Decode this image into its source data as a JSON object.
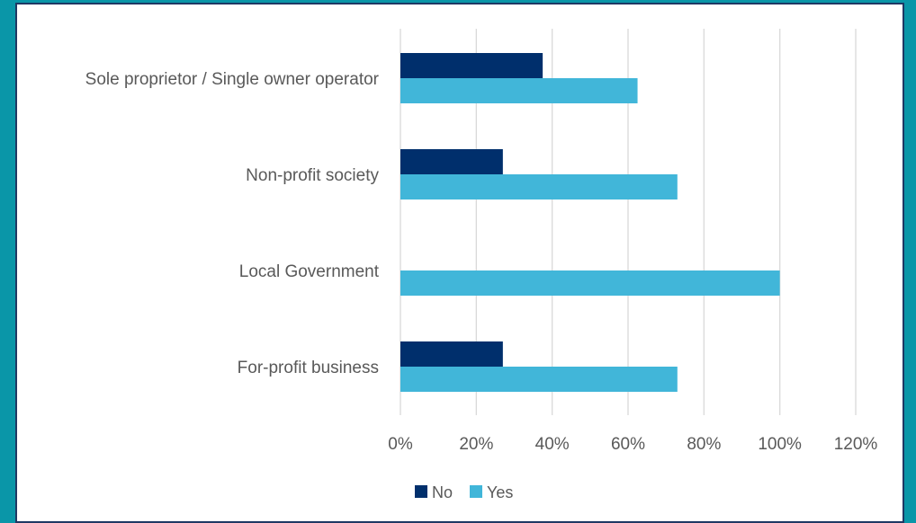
{
  "chart_data": {
    "type": "bar",
    "orientation": "horizontal",
    "categories": [
      "Sole proprietor / Single owner operator",
      "Non-profit society",
      "Local Government",
      "For-profit business"
    ],
    "series": [
      {
        "name": "No",
        "color": "#002f6c",
        "values": [
          0.375,
          0.27,
          0.0,
          0.27
        ]
      },
      {
        "name": "Yes",
        "color": "#41b6d9",
        "values": [
          0.625,
          0.73,
          1.0,
          0.73
        ]
      }
    ],
    "xlim": [
      0,
      1.2
    ],
    "xticks": [
      0,
      0.2,
      0.4,
      0.6,
      0.8,
      1.0,
      1.2
    ],
    "tick_labels": [
      "0%",
      "20%",
      "40%",
      "60%",
      "80%",
      "100%",
      "120%"
    ],
    "grid": "vertical",
    "legend_position": "bottom"
  },
  "colors": {
    "background": "#0a96a8",
    "frame_border": "#1f3864",
    "gridline": "#d9d9d9",
    "text": "#595959"
  }
}
